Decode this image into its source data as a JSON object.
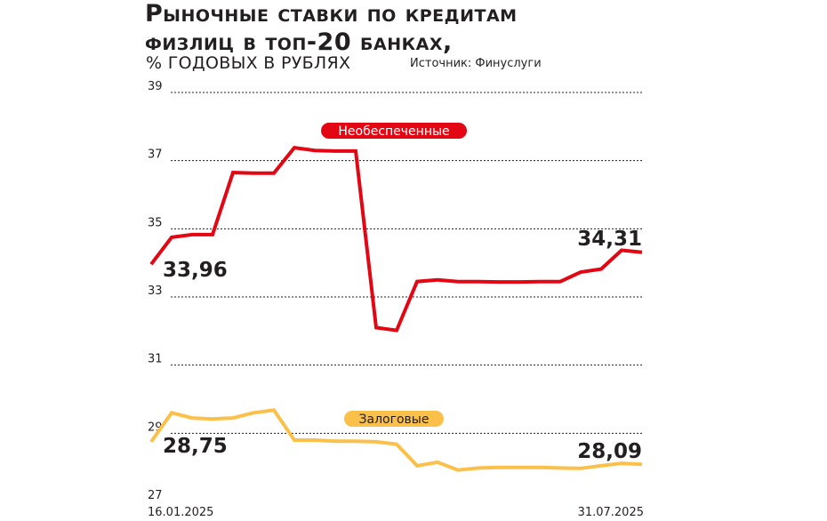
{
  "header": {
    "title_line1": "Рыночные ставки по кредитам",
    "title_line2": "физлиц в топ-20 банках,",
    "subtitle": "% годовых в рублях",
    "source": "Источник: Финуслуги"
  },
  "colors": {
    "unsecured": "#e30613",
    "secured": "#fbc04a",
    "grid": "#231f20",
    "text": "#231f20",
    "unsecured_tag_text": "#ffffff",
    "secured_tag_text": "#231f20"
  },
  "chart_data": {
    "type": "line",
    "title": "Рыночные ставки по кредитам физлиц в топ-20 банках,",
    "subtitle": "% годовых в рублях",
    "xlabel": "",
    "ylabel": "",
    "x_tick_labels": [
      "16.01.2025",
      "31.07.2025"
    ],
    "x_first": "16.01.2025",
    "x_last": "31.07.2025",
    "ylim": [
      27,
      39
    ],
    "y_ticks": [
      27,
      29,
      31,
      33,
      35,
      37,
      39
    ],
    "grid": true,
    "series": [
      {
        "name": "Необеспеченные",
        "values": [
          33.96,
          34.75,
          34.83,
          34.83,
          36.65,
          36.63,
          36.63,
          37.38,
          37.3,
          37.28,
          37.28,
          32.1,
          32.02,
          33.45,
          33.5,
          33.45,
          33.45,
          33.44,
          33.44,
          33.45,
          33.45,
          33.73,
          33.82,
          34.37,
          34.31
        ],
        "first_label": "33,96",
        "last_label": "34,31"
      },
      {
        "name": "Залоговые",
        "values": [
          28.75,
          29.6,
          29.45,
          29.42,
          29.45,
          29.6,
          29.68,
          28.8,
          28.8,
          28.77,
          28.77,
          28.75,
          28.68,
          28.05,
          28.15,
          27.92,
          27.98,
          28.0,
          28.0,
          28.0,
          27.98,
          27.97,
          28.05,
          28.12,
          28.09
        ],
        "first_label": "28,75",
        "last_label": "28,09"
      }
    ]
  }
}
